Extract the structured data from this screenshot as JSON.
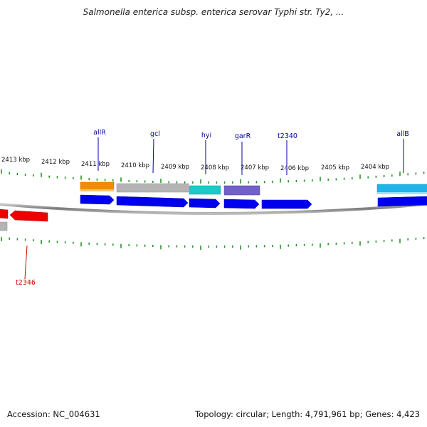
{
  "title": "Salmonella enterica subsp. enterica serovar Typhi str. Ty2, ...",
  "accession": "Accession: NC_004631",
  "summary": "Topology: circular; Length: 4,791,961 bp; Genes: 4,423",
  "ruler": {
    "labels": [
      "2413 kbp",
      "2412 kbp",
      "2411 kbp",
      "2410 kbp",
      "2409 kbp",
      "2408 kbp",
      "2407 kbp",
      "2406 kbp",
      "2405 kbp",
      "2404 kbp"
    ]
  },
  "gene_labels": {
    "top": [
      "allR",
      "gcl",
      "hyi",
      "garR",
      "t2340",
      "allB"
    ],
    "bottom": [
      "t2346"
    ]
  },
  "colors": {
    "cds_forward": "#0000ee",
    "cds_reverse": "#ee0000",
    "tick": "#1a8a1a",
    "backbone": "#8a8a8a",
    "label_forward": "#0000aa",
    "label_reverse": "#cc0000",
    "feature_allR": "#f08c00",
    "feature_gcl": "#b4b4b4",
    "feature_hyi": "#1cc8c8",
    "feature_garR": "#7060c8",
    "feature_allB": "#20b4e8"
  }
}
